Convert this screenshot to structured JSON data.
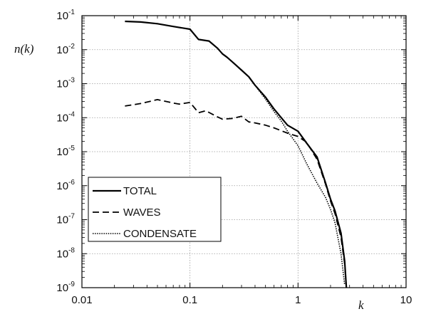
{
  "chart_data": {
    "type": "line",
    "title": "",
    "xlabel": "k",
    "ylabel": "n(k)",
    "xscale": "log",
    "yscale": "log",
    "xlim": [
      0.01,
      10
    ],
    "ylim": [
      1e-09,
      0.1
    ],
    "grid": true,
    "legend_position": "bottom-left",
    "x_ticks": [
      {
        "value": 0.01,
        "label": "0.01"
      },
      {
        "value": 0.1,
        "label": "0.1"
      },
      {
        "value": 1,
        "label": "1"
      },
      {
        "value": 10,
        "label": "10"
      }
    ],
    "y_ticks": [
      {
        "value": 0.1,
        "base": "10",
        "exp": "-1"
      },
      {
        "value": 0.01,
        "base": "10",
        "exp": "-2"
      },
      {
        "value": 0.001,
        "base": "10",
        "exp": "-3"
      },
      {
        "value": 0.0001,
        "base": "10",
        "exp": "-4"
      },
      {
        "value": 1e-05,
        "base": "10",
        "exp": "-5"
      },
      {
        "value": 1e-06,
        "base": "10",
        "exp": "-6"
      },
      {
        "value": 1e-07,
        "base": "10",
        "exp": "-7"
      },
      {
        "value": 1e-08,
        "base": "10",
        "exp": "-8"
      },
      {
        "value": 1e-09,
        "base": "10",
        "exp": "-9"
      }
    ],
    "series": [
      {
        "name": "TOTAL",
        "style": "solid",
        "x": [
          0.025,
          0.035,
          0.05,
          0.07,
          0.1,
          0.12,
          0.15,
          0.18,
          0.2,
          0.22,
          0.25,
          0.3,
          0.35,
          0.4,
          0.5,
          0.6,
          0.7,
          0.8,
          1.0,
          1.2,
          1.5,
          1.8,
          2.0,
          2.2,
          2.5,
          2.7,
          2.8
        ],
        "y": [
          0.068,
          0.065,
          0.058,
          0.048,
          0.04,
          0.02,
          0.018,
          0.011,
          0.0075,
          0.006,
          0.0042,
          0.0025,
          0.0016,
          0.0009,
          0.0004,
          0.00018,
          0.0001,
          6e-05,
          4e-05,
          1.8e-05,
          7e-06,
          1.2e-06,
          4e-07,
          1.8e-07,
          4e-08,
          6e-09,
          1e-09
        ]
      },
      {
        "name": "WAVES",
        "style": "dashed",
        "x": [
          0.025,
          0.035,
          0.05,
          0.07,
          0.08,
          0.1,
          0.12,
          0.14,
          0.18,
          0.2,
          0.25,
          0.3,
          0.35,
          0.4,
          0.5,
          0.6,
          0.8,
          1.0,
          1.2,
          1.5,
          1.8,
          2.0,
          2.2,
          2.5,
          2.7,
          2.8
        ],
        "y": [
          0.00022,
          0.00026,
          0.00034,
          0.00027,
          0.00025,
          0.00028,
          0.00014,
          0.00016,
          0.000105,
          9e-05,
          9.5e-05,
          0.00011,
          7.5e-05,
          7e-05,
          6e-05,
          5e-05,
          3.5e-05,
          2.8e-05,
          1.9e-05,
          6e-06,
          1.1e-06,
          3.5e-07,
          1.5e-07,
          3e-08,
          5e-09,
          1e-09
        ]
      },
      {
        "name": "CONDENSATE",
        "style": "dotted",
        "x": [
          0.4,
          0.5,
          0.6,
          0.7,
          0.8,
          1.0,
          1.2,
          1.5,
          1.8,
          2.0,
          2.2,
          2.5,
          2.7
        ],
        "y": [
          0.0009,
          0.00035,
          0.00015,
          8e-05,
          4e-05,
          1.5e-05,
          4.5e-06,
          1.2e-06,
          4.5e-07,
          2e-07,
          8e-08,
          1e-08,
          1.2e-09
        ]
      }
    ]
  }
}
